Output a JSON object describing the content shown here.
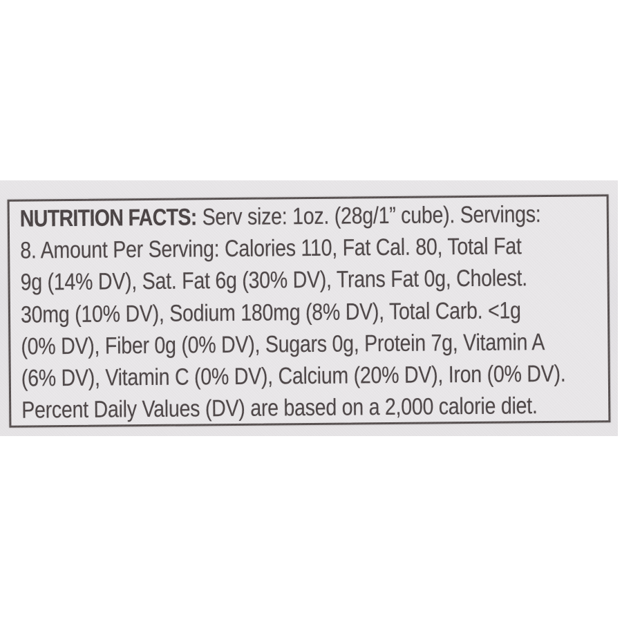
{
  "label": {
    "title": "NUTRITION FACTS:",
    "title_rest": "Serv size: 1oz. (28g/1” cube). Servings:",
    "lines": [
      "8. Amount Per Serving: Calories 110, Fat Cal. 80, Total Fat",
      "9g (14% DV), Sat. Fat 6g (30% DV), Trans Fat 0g, Cholest.",
      "30mg (10% DV), Sodium 180mg (8% DV), Total Carb. <1g",
      "(0% DV), Fiber 0g (0% DV), Sugars 0g, Protein 7g, Vitamin A",
      "(6% DV), Vitamin C (0% DV), Calcium (20% DV), Iron (0% DV).",
      "Percent Daily Values (DV) are based on a 2,000 calorie diet."
    ]
  },
  "facts": {
    "serving_size": "1oz. (28g/1” cube)",
    "servings": "8",
    "calories": "110",
    "fat_calories": "80",
    "total_fat": "9g (14% DV)",
    "saturated_fat": "6g (30% DV)",
    "trans_fat": "0g",
    "cholesterol": "30mg (10% DV)",
    "sodium": "180mg (8% DV)",
    "total_carb": "<1g (0% DV)",
    "fiber": "0g (0% DV)",
    "sugars": "0g",
    "protein": "7g",
    "vitamin_a": "6% DV",
    "vitamin_c": "0% DV",
    "calcium": "20% DV",
    "iron": "0% DV",
    "dv_note": "Percent Daily Values (DV) are based on a 2,000 calorie diet."
  },
  "colors": {
    "page_background": "#ffffff",
    "photo_background": "#e4e2e4",
    "label_border": "#575050",
    "text": "#4d4647"
  }
}
